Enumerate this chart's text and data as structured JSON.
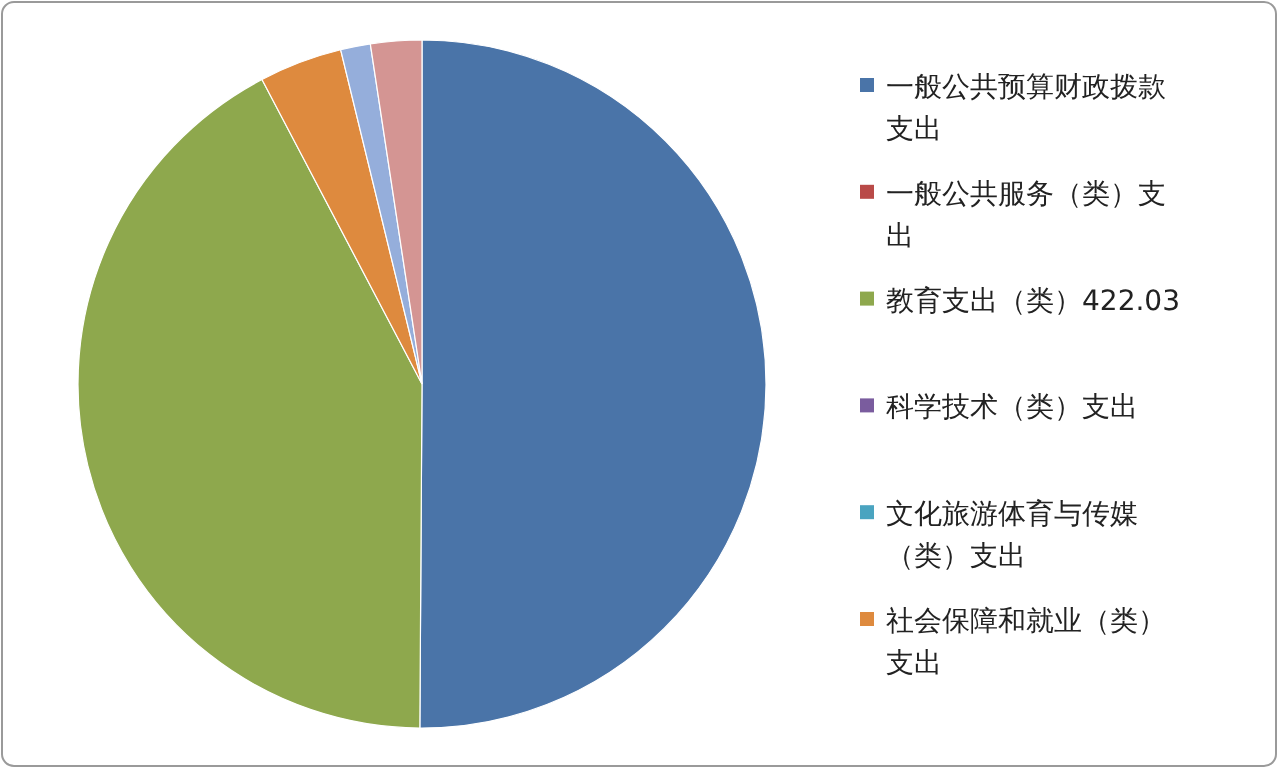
{
  "chart_data": {
    "type": "pie",
    "legend": "right",
    "categories": [
      "一般公共预算财政拨款支出",
      "一般公共服务（类）支出",
      "教育支出（类）422.03",
      "科学技术（类）支出",
      "文化旅游体育与传媒（类）支出",
      "社会保障和就业（类）支出",
      null,
      null
    ],
    "values": [
      50.1,
      0,
      42.2,
      0,
      0,
      3.9,
      1.4,
      2.4
    ],
    "colors": [
      "#4a74a8",
      "#b94a48",
      "#8ea84d",
      "#7a5c9e",
      "#4aa4c0",
      "#de8a3e",
      "#95aedb",
      "#d49593"
    ]
  }
}
